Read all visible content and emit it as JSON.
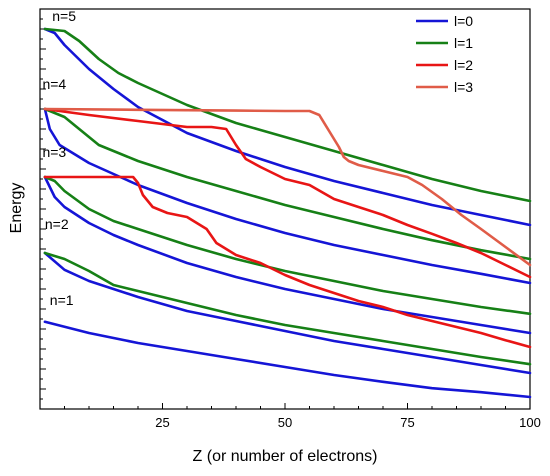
{
  "chart_data": {
    "type": "line",
    "xlabel": "Z (or number of electrons)",
    "ylabel": "Energy",
    "xlim": [
      0,
      100
    ],
    "xticks": [
      25,
      50,
      75,
      100
    ],
    "ylim": [
      0,
      10
    ],
    "grid": false,
    "legend_position": "top-right",
    "legend": [
      {
        "name": "l=0",
        "color": "#1515d6"
      },
      {
        "name": "l=1",
        "color": "#168016"
      },
      {
        "name": "l=2",
        "color": "#e81515"
      },
      {
        "name": "l=3",
        "color": "#e05c48"
      }
    ],
    "level_labels": [
      {
        "text": "n=5",
        "x": 2.5,
        "y": 9.7
      },
      {
        "text": "n=4",
        "x": 0.5,
        "y": 8.0
      },
      {
        "text": "n=3",
        "x": 0.5,
        "y": 6.3
      },
      {
        "text": "n=2",
        "x": 1.0,
        "y": 4.5
      },
      {
        "text": "n=1",
        "x": 2.0,
        "y": 2.6
      }
    ],
    "series": [
      {
        "l": 0,
        "n": 1,
        "x": [
          1,
          10,
          20,
          30,
          40,
          50,
          60,
          70,
          80,
          90,
          100
        ],
        "y": [
          2.18,
          1.9,
          1.65,
          1.45,
          1.25,
          1.05,
          0.85,
          0.68,
          0.52,
          0.42,
          0.3
        ]
      },
      {
        "l": 0,
        "n": 2,
        "x": [
          1,
          5,
          10,
          20,
          30,
          40,
          50,
          60,
          70,
          80,
          90,
          100
        ],
        "y": [
          3.9,
          3.48,
          3.2,
          2.8,
          2.45,
          2.2,
          1.95,
          1.7,
          1.5,
          1.3,
          1.1,
          0.9
        ]
      },
      {
        "l": 0,
        "n": 3,
        "x": [
          1,
          3,
          5,
          10,
          15,
          20,
          30,
          40,
          50,
          60,
          70,
          80,
          90,
          100
        ],
        "y": [
          5.8,
          5.3,
          5.05,
          4.65,
          4.35,
          4.1,
          3.65,
          3.3,
          3.0,
          2.75,
          2.5,
          2.3,
          2.1,
          1.9
        ]
      },
      {
        "l": 0,
        "n": 4,
        "x": [
          1,
          2,
          4,
          6,
          10,
          20,
          30,
          40,
          50,
          60,
          70,
          80,
          90,
          100
        ],
        "y": [
          7.5,
          7.0,
          6.6,
          6.45,
          6.15,
          5.6,
          5.15,
          4.75,
          4.4,
          4.1,
          3.85,
          3.6,
          3.38,
          3.15
        ]
      },
      {
        "l": 0,
        "n": 5,
        "x": [
          1,
          3,
          5,
          10,
          15,
          20,
          30,
          40,
          50,
          60,
          70,
          80,
          90,
          100
        ],
        "y": [
          9.5,
          9.4,
          9.1,
          8.5,
          8.0,
          7.55,
          6.9,
          6.45,
          6.05,
          5.7,
          5.4,
          5.1,
          4.85,
          4.6
        ]
      },
      {
        "l": 1,
        "n": 2,
        "x": [
          1,
          5,
          10,
          15,
          20,
          30,
          40,
          50,
          60,
          70,
          80,
          90,
          100
        ],
        "y": [
          3.9,
          3.75,
          3.45,
          3.1,
          2.95,
          2.65,
          2.35,
          2.1,
          1.9,
          1.7,
          1.5,
          1.3,
          1.12
        ]
      },
      {
        "l": 1,
        "n": 3,
        "x": [
          1,
          3,
          5,
          10,
          15,
          20,
          30,
          40,
          50,
          60,
          70,
          80,
          90,
          100
        ],
        "y": [
          5.8,
          5.7,
          5.45,
          5.0,
          4.7,
          4.5,
          4.1,
          3.75,
          3.45,
          3.2,
          2.95,
          2.75,
          2.55,
          2.38
        ]
      },
      {
        "l": 1,
        "n": 4,
        "x": [
          1,
          5,
          8,
          12,
          16,
          20,
          30,
          40,
          50,
          60,
          70,
          80,
          90,
          100
        ],
        "y": [
          7.5,
          7.3,
          7.0,
          6.6,
          6.4,
          6.2,
          5.8,
          5.45,
          5.1,
          4.8,
          4.5,
          4.22,
          3.97,
          3.75
        ]
      },
      {
        "l": 1,
        "n": 5,
        "x": [
          1,
          5,
          8,
          12,
          16,
          20,
          30,
          40,
          50,
          60,
          70,
          80,
          90,
          100
        ],
        "y": [
          9.5,
          9.45,
          9.2,
          8.75,
          8.4,
          8.15,
          7.6,
          7.15,
          6.8,
          6.45,
          6.1,
          5.75,
          5.45,
          5.2
        ]
      },
      {
        "l": 2,
        "n": 3,
        "x": [
          1,
          19,
          20,
          21,
          23,
          26,
          30,
          34,
          36,
          40,
          45,
          50,
          55,
          60,
          65,
          70,
          75,
          80,
          85,
          90,
          95,
          100
        ],
        "y": [
          5.8,
          5.8,
          5.65,
          5.35,
          5.05,
          4.9,
          4.8,
          4.5,
          4.15,
          3.85,
          3.65,
          3.35,
          3.1,
          2.9,
          2.7,
          2.55,
          2.35,
          2.2,
          2.05,
          1.9,
          1.72,
          1.55
        ]
      },
      {
        "l": 2,
        "n": 4,
        "x": [
          1,
          10,
          20,
          30,
          35,
          38,
          40,
          42,
          45,
          50,
          55,
          60,
          65,
          70,
          75,
          80,
          85,
          90,
          95,
          100
        ],
        "y": [
          7.5,
          7.35,
          7.2,
          7.05,
          7.05,
          7.0,
          6.6,
          6.25,
          6.05,
          5.75,
          5.6,
          5.25,
          5.05,
          4.85,
          4.6,
          4.38,
          4.15,
          3.9,
          3.6,
          3.3
        ]
      },
      {
        "l": 3,
        "n": 4,
        "x": [
          1,
          20,
          40,
          50,
          55,
          57,
          59,
          61,
          62,
          63,
          65,
          70,
          75,
          78,
          82,
          86,
          90,
          95,
          100
        ],
        "y": [
          7.5,
          7.48,
          7.46,
          7.45,
          7.45,
          7.35,
          6.95,
          6.55,
          6.3,
          6.2,
          6.1,
          5.95,
          5.8,
          5.6,
          5.25,
          4.85,
          4.5,
          4.05,
          3.6
        ]
      }
    ]
  }
}
